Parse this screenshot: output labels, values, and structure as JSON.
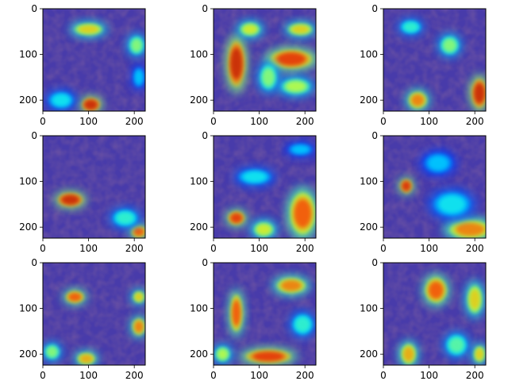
{
  "figure": {
    "background": "#ffffff",
    "colormap": "jet",
    "overlay_alpha": 0.5,
    "tissue_base_color": "#5a4a9a"
  },
  "chart_data": [
    {
      "type": "heatmap",
      "panel": "r1c1",
      "x_ticks": [
        "0",
        "100",
        "200"
      ],
      "y_ticks": [
        "0",
        "100",
        "200"
      ],
      "xlim": [
        0,
        224
      ],
      "ylim": [
        224,
        0
      ],
      "hotspots": [
        {
          "x": 105,
          "y": 210,
          "intensity": 0.95,
          "rx": 22,
          "ry": 16
        },
        {
          "x": 100,
          "y": 45,
          "intensity": 0.7,
          "rx": 35,
          "ry": 14
        },
        {
          "x": 205,
          "y": 80,
          "intensity": 0.55,
          "rx": 18,
          "ry": 22
        },
        {
          "x": 40,
          "y": 200,
          "intensity": 0.4,
          "rx": 30,
          "ry": 20
        },
        {
          "x": 210,
          "y": 150,
          "intensity": 0.35,
          "rx": 14,
          "ry": 25
        }
      ]
    },
    {
      "type": "heatmap",
      "panel": "r1c2",
      "x_ticks": [
        "0",
        "100",
        "200"
      ],
      "y_ticks": [
        "0",
        "100",
        "200"
      ],
      "xlim": [
        0,
        224
      ],
      "ylim": [
        224,
        0
      ],
      "hotspots": [
        {
          "x": 50,
          "y": 120,
          "intensity": 0.95,
          "rx": 20,
          "ry": 55
        },
        {
          "x": 170,
          "y": 110,
          "intensity": 0.9,
          "rx": 50,
          "ry": 22
        },
        {
          "x": 190,
          "y": 45,
          "intensity": 0.7,
          "rx": 30,
          "ry": 14
        },
        {
          "x": 80,
          "y": 45,
          "intensity": 0.65,
          "rx": 25,
          "ry": 16
        },
        {
          "x": 180,
          "y": 170,
          "intensity": 0.6,
          "rx": 35,
          "ry": 18
        },
        {
          "x": 120,
          "y": 150,
          "intensity": 0.55,
          "rx": 20,
          "ry": 30
        }
      ]
    },
    {
      "type": "heatmap",
      "panel": "r1c3",
      "x_ticks": [
        "0",
        "100",
        "200"
      ],
      "y_ticks": [
        "0",
        "100",
        "200"
      ],
      "xlim": [
        0,
        224
      ],
      "ylim": [
        224,
        0
      ],
      "hotspots": [
        {
          "x": 210,
          "y": 185,
          "intensity": 0.95,
          "rx": 18,
          "ry": 35
        },
        {
          "x": 75,
          "y": 200,
          "intensity": 0.8,
          "rx": 22,
          "ry": 20
        },
        {
          "x": 145,
          "y": 80,
          "intensity": 0.55,
          "rx": 22,
          "ry": 22
        },
        {
          "x": 60,
          "y": 40,
          "intensity": 0.45,
          "rx": 25,
          "ry": 16
        }
      ]
    },
    {
      "type": "heatmap",
      "panel": "r2c1",
      "x_ticks": [
        "0",
        "100",
        "200"
      ],
      "y_ticks": [
        "0",
        "100",
        "200"
      ],
      "xlim": [
        0,
        224
      ],
      "ylim": [
        224,
        0
      ],
      "hotspots": [
        {
          "x": 60,
          "y": 140,
          "intensity": 0.95,
          "rx": 30,
          "ry": 16
        },
        {
          "x": 210,
          "y": 210,
          "intensity": 0.85,
          "rx": 18,
          "ry": 14
        },
        {
          "x": 180,
          "y": 180,
          "intensity": 0.45,
          "rx": 30,
          "ry": 20
        }
      ]
    },
    {
      "type": "heatmap",
      "panel": "r2c2",
      "x_ticks": [
        "0",
        "100",
        "200"
      ],
      "y_ticks": [
        "0",
        "100",
        "200"
      ],
      "xlim": [
        0,
        224
      ],
      "ylim": [
        224,
        0
      ],
      "hotspots": [
        {
          "x": 50,
          "y": 180,
          "intensity": 0.9,
          "rx": 20,
          "ry": 16
        },
        {
          "x": 195,
          "y": 170,
          "intensity": 0.85,
          "rx": 30,
          "ry": 50
        },
        {
          "x": 110,
          "y": 205,
          "intensity": 0.65,
          "rx": 25,
          "ry": 18
        },
        {
          "x": 90,
          "y": 90,
          "intensity": 0.4,
          "rx": 40,
          "ry": 18
        },
        {
          "x": 190,
          "y": 30,
          "intensity": 0.35,
          "rx": 30,
          "ry": 14
        }
      ]
    },
    {
      "type": "heatmap",
      "panel": "r2c3",
      "x_ticks": [
        "0",
        "100",
        "200"
      ],
      "y_ticks": [
        "0",
        "100",
        "200"
      ],
      "xlim": [
        0,
        224
      ],
      "ylim": [
        224,
        0
      ],
      "hotspots": [
        {
          "x": 50,
          "y": 110,
          "intensity": 0.92,
          "rx": 14,
          "ry": 16
        },
        {
          "x": 190,
          "y": 205,
          "intensity": 0.8,
          "rx": 50,
          "ry": 22
        },
        {
          "x": 150,
          "y": 150,
          "intensity": 0.4,
          "rx": 45,
          "ry": 30
        },
        {
          "x": 120,
          "y": 60,
          "intensity": 0.35,
          "rx": 35,
          "ry": 25
        }
      ]
    },
    {
      "type": "heatmap",
      "panel": "r3c1",
      "x_ticks": [
        "0",
        "100",
        "200"
      ],
      "y_ticks": [
        "0",
        "100",
        "200"
      ],
      "xlim": [
        0,
        224
      ],
      "ylim": [
        224,
        0
      ],
      "hotspots": [
        {
          "x": 70,
          "y": 75,
          "intensity": 0.85,
          "rx": 22,
          "ry": 14
        },
        {
          "x": 210,
          "y": 140,
          "intensity": 0.8,
          "rx": 15,
          "ry": 20
        },
        {
          "x": 210,
          "y": 75,
          "intensity": 0.7,
          "rx": 14,
          "ry": 14
        },
        {
          "x": 95,
          "y": 210,
          "intensity": 0.75,
          "rx": 22,
          "ry": 14
        },
        {
          "x": 20,
          "y": 195,
          "intensity": 0.55,
          "rx": 18,
          "ry": 18
        }
      ]
    },
    {
      "type": "heatmap",
      "panel": "r3c2",
      "x_ticks": [
        "0",
        "100",
        "200"
      ],
      "y_ticks": [
        "0",
        "100",
        "200"
      ],
      "xlim": [
        0,
        224
      ],
      "ylim": [
        224,
        0
      ],
      "hotspots": [
        {
          "x": 120,
          "y": 205,
          "intensity": 0.9,
          "rx": 55,
          "ry": 16
        },
        {
          "x": 50,
          "y": 110,
          "intensity": 0.85,
          "rx": 14,
          "ry": 45
        },
        {
          "x": 170,
          "y": 50,
          "intensity": 0.8,
          "rx": 35,
          "ry": 18
        },
        {
          "x": 20,
          "y": 200,
          "intensity": 0.6,
          "rx": 18,
          "ry": 18
        },
        {
          "x": 195,
          "y": 135,
          "intensity": 0.45,
          "rx": 25,
          "ry": 25
        }
      ]
    },
    {
      "type": "heatmap",
      "panel": "r3c3",
      "x_ticks": [
        "0",
        "100",
        "200"
      ],
      "y_ticks": [
        "0",
        "100",
        "200"
      ],
      "xlim": [
        0,
        224
      ],
      "ylim": [
        224,
        0
      ],
      "hotspots": [
        {
          "x": 115,
          "y": 60,
          "intensity": 0.85,
          "rx": 25,
          "ry": 30
        },
        {
          "x": 200,
          "y": 80,
          "intensity": 0.7,
          "rx": 18,
          "ry": 35
        },
        {
          "x": 55,
          "y": 200,
          "intensity": 0.75,
          "rx": 18,
          "ry": 25
        },
        {
          "x": 210,
          "y": 200,
          "intensity": 0.7,
          "rx": 14,
          "ry": 20
        },
        {
          "x": 160,
          "y": 180,
          "intensity": 0.5,
          "rx": 25,
          "ry": 25
        }
      ]
    }
  ]
}
